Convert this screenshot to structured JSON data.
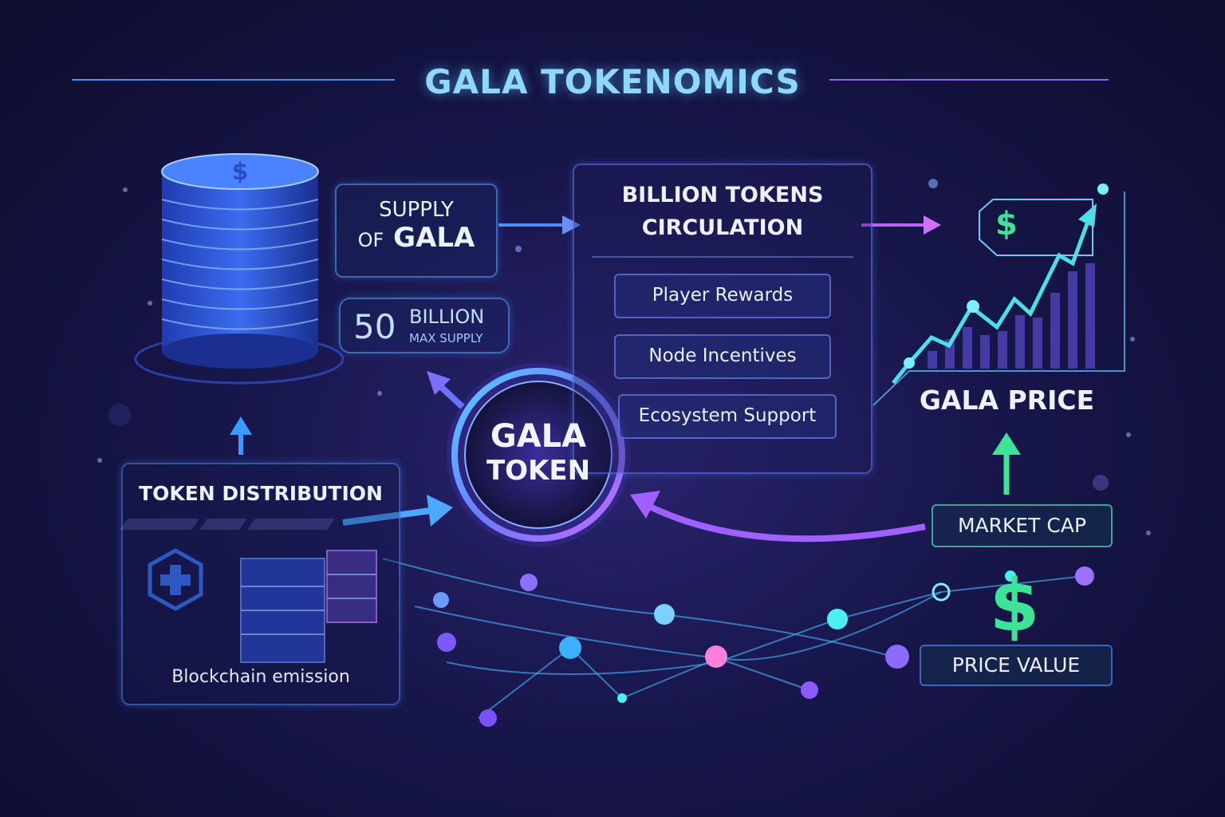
{
  "title": "GALA TOKENOMICS",
  "supply": {
    "line1": "SUPPLY",
    "line2_prefix": "OF",
    "line2_main": "GALA"
  },
  "max_supply": {
    "number": "50",
    "unit": "BILLION",
    "label": "MAX SUPPLY"
  },
  "circulation": {
    "title_line1": "BILLION TOKENS",
    "title_line2": "CIRCULATION",
    "items": [
      "Player Rewards",
      "Node Incentives",
      "Ecosystem Support"
    ]
  },
  "center_token": {
    "line1": "GALA",
    "line2": "TOKEN"
  },
  "distribution": {
    "title": "TOKEN DISTRIBUTION",
    "caption": "Blockchain emission"
  },
  "price": {
    "title": "GALA PRICE",
    "currency_symbol": "$"
  },
  "market_cap": "MARKET CAP",
  "price_value": {
    "label": "PRICE VALUE",
    "currency_symbol": "$"
  },
  "colors": {
    "accent_blue": "#4aa8ff",
    "accent_purple": "#a46cff",
    "accent_green": "#3ee39a",
    "title": "#8fd8f8"
  }
}
